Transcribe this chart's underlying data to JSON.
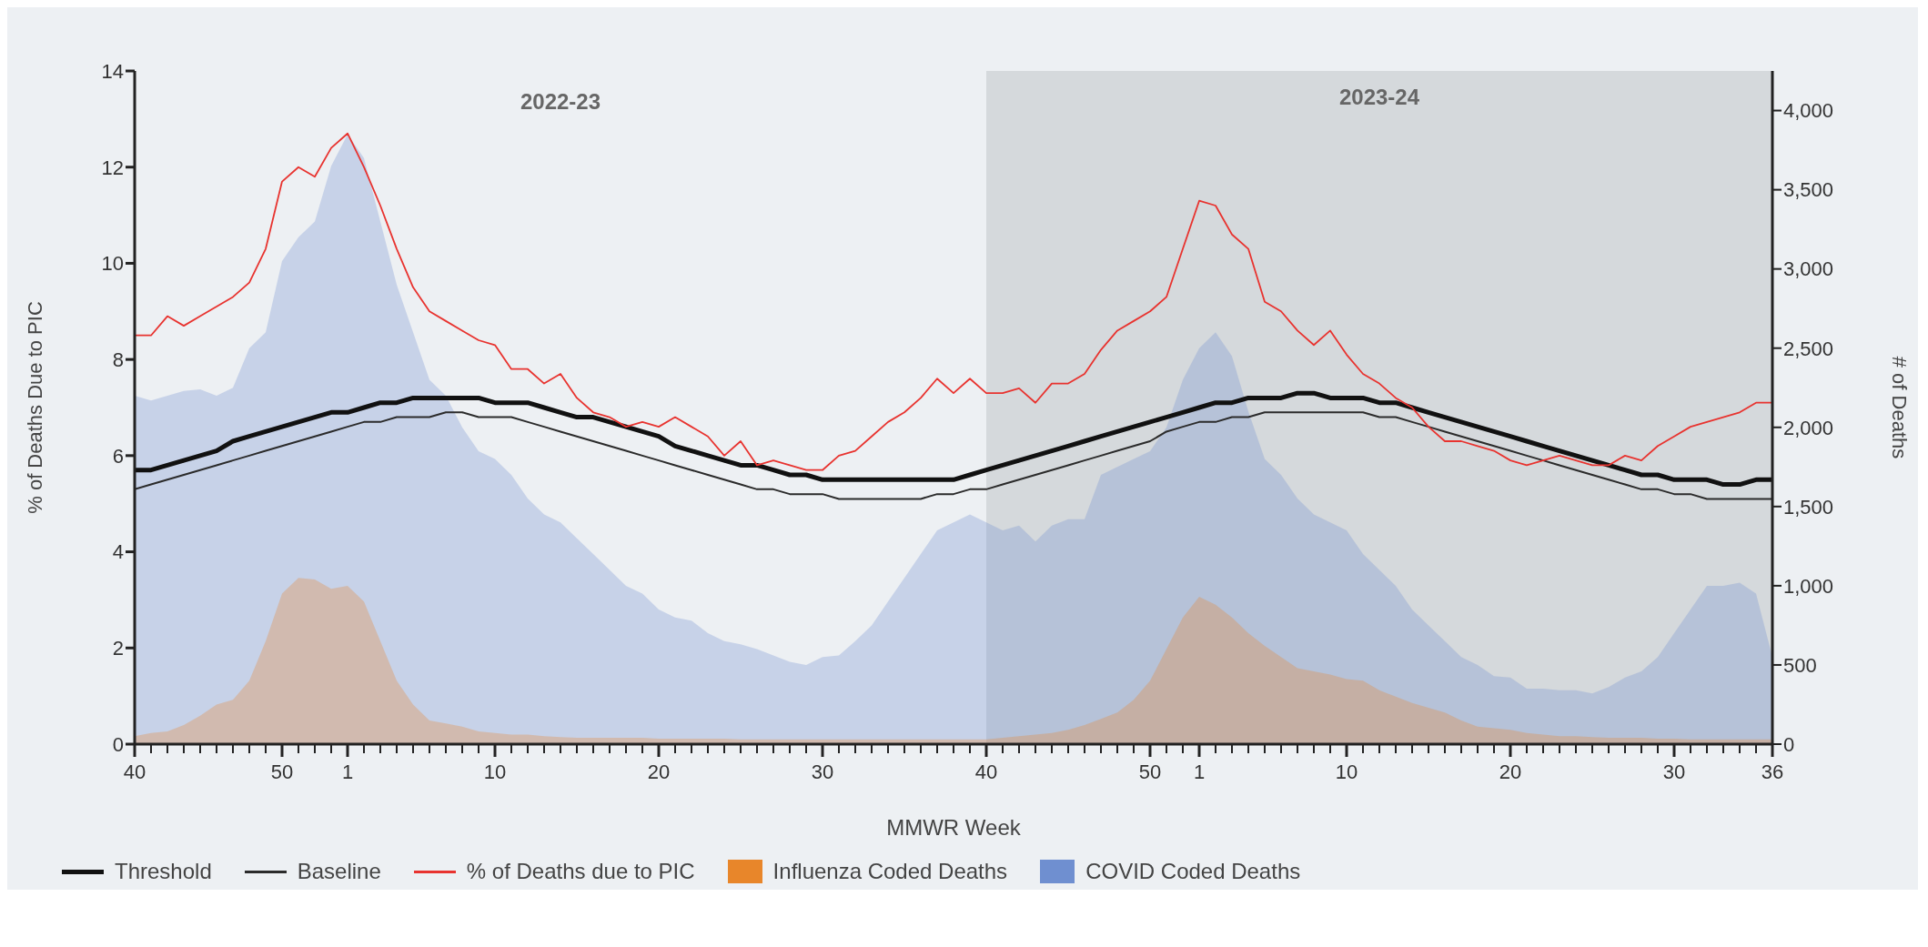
{
  "chart_data": {
    "type": "line",
    "xlabel": "MMWR Week",
    "ylabel": "% of Deaths Due to PIC",
    "y2label": "# of Deaths",
    "x": [
      "2022-10-08",
      "2022-10-15",
      "2022-10-22",
      "2022-10-29",
      "2022-11-05",
      "2022-11-12",
      "2022-11-19",
      "2022-11-26",
      "2022-12-03",
      "2022-12-10",
      "2022-12-17",
      "2022-12-24",
      "2022-12-31",
      "2023-01-07",
      "2023-01-14",
      "2023-01-21",
      "2023-01-28",
      "2023-02-04",
      "2023-02-11",
      "2023-02-18",
      "2023-02-25",
      "2023-03-04",
      "2023-03-11",
      "2023-03-18",
      "2023-03-25",
      "2023-04-01",
      "2023-04-08",
      "2023-04-15",
      "2023-04-22",
      "2023-04-29",
      "2023-05-06",
      "2023-05-13",
      "2023-05-20",
      "2023-05-27",
      "2023-06-03",
      "2023-06-10",
      "2023-06-17",
      "2023-06-24",
      "2023-07-01",
      "2023-07-08",
      "2023-07-15",
      "2023-07-22",
      "2023-07-29",
      "2023-08-05",
      "2023-08-12",
      "2023-08-19",
      "2023-08-26",
      "2023-09-02",
      "2023-09-09",
      "2023-09-16",
      "2023-09-23",
      "2023-09-30",
      "2023-10-07",
      "2023-10-14",
      "2023-10-21",
      "2023-10-28",
      "2023-11-04",
      "2023-11-11",
      "2023-11-18",
      "2023-11-25",
      "2023-12-02",
      "2023-12-09",
      "2023-12-16",
      "2023-12-23",
      "2023-12-30",
      "2024-01-06",
      "2024-01-13",
      "2024-01-20",
      "2024-01-27",
      "2024-02-03",
      "2024-02-10",
      "2024-02-17",
      "2024-02-24",
      "2024-03-02",
      "2024-03-09",
      "2024-03-16",
      "2024-03-23",
      "2024-03-30",
      "2024-04-06",
      "2024-04-13",
      "2024-04-20",
      "2024-04-27",
      "2024-05-04",
      "2024-05-11",
      "2024-05-18",
      "2024-05-25",
      "2024-06-01",
      "2024-06-08",
      "2024-06-15",
      "2024-06-22",
      "2024-06-29",
      "2024-07-06",
      "2024-07-13",
      "2024-07-20",
      "2024-07-27",
      "2024-08-03",
      "2024-08-10",
      "2024-08-17",
      "2024-08-24",
      "2024-08-31",
      "2024-09-07"
    ],
    "xlim": [
      "2022-10-08",
      "2024-09-07"
    ],
    "xticks": [
      {
        "value": "2022-10-08",
        "label": "40"
      },
      {
        "value": "2022-10-15",
        "label": null
      },
      {
        "value": "2022-10-22",
        "label": null
      },
      {
        "value": "2022-10-29",
        "label": null
      },
      {
        "value": "2022-11-05",
        "label": null
      },
      {
        "value": "2022-11-12",
        "label": null
      },
      {
        "value": "2022-11-19",
        "label": null
      },
      {
        "value": "2022-11-26",
        "label": null
      },
      {
        "value": "2022-12-03",
        "label": null
      },
      {
        "value": "2022-12-10",
        "label": "50"
      },
      {
        "value": "2022-12-17",
        "label": null
      },
      {
        "value": "2022-12-24",
        "label": null
      },
      {
        "value": "2022-12-31",
        "label": null
      },
      {
        "value": "2023-01-07",
        "label": "1"
      },
      {
        "value": "2023-01-14",
        "label": null
      },
      {
        "value": "2023-01-21",
        "label": null
      },
      {
        "value": "2023-01-28",
        "label": null
      },
      {
        "value": "2023-02-04",
        "label": null
      },
      {
        "value": "2023-02-11",
        "label": null
      },
      {
        "value": "2023-02-18",
        "label": null
      },
      {
        "value": "2023-02-25",
        "label": null
      },
      {
        "value": "2023-03-04",
        "label": null
      },
      {
        "value": "2023-03-11",
        "label": "10"
      },
      {
        "value": "2023-03-18",
        "label": null
      },
      {
        "value": "2023-03-25",
        "label": null
      },
      {
        "value": "2023-04-01",
        "label": null
      },
      {
        "value": "2023-04-08",
        "label": null
      },
      {
        "value": "2023-04-15",
        "label": null
      },
      {
        "value": "2023-04-22",
        "label": null
      },
      {
        "value": "2023-04-29",
        "label": null
      },
      {
        "value": "2023-05-06",
        "label": null
      },
      {
        "value": "2023-05-13",
        "label": null
      },
      {
        "value": "2023-05-20",
        "label": "20"
      },
      {
        "value": "2023-05-27",
        "label": null
      },
      {
        "value": "2023-06-03",
        "label": null
      },
      {
        "value": "2023-06-10",
        "label": null
      },
      {
        "value": "2023-06-17",
        "label": null
      },
      {
        "value": "2023-06-24",
        "label": null
      },
      {
        "value": "2023-07-01",
        "label": null
      },
      {
        "value": "2023-07-08",
        "label": null
      },
      {
        "value": "2023-07-15",
        "label": null
      },
      {
        "value": "2023-07-22",
        "label": null
      },
      {
        "value": "2023-07-29",
        "label": "30"
      },
      {
        "value": "2023-08-05",
        "label": null
      },
      {
        "value": "2023-08-12",
        "label": null
      },
      {
        "value": "2023-08-19",
        "label": null
      },
      {
        "value": "2023-08-26",
        "label": null
      },
      {
        "value": "2023-09-02",
        "label": null
      },
      {
        "value": "2023-09-09",
        "label": null
      },
      {
        "value": "2023-09-16",
        "label": null
      },
      {
        "value": "2023-09-23",
        "label": null
      },
      {
        "value": "2023-09-30",
        "label": null
      },
      {
        "value": "2023-10-07",
        "label": "40"
      },
      {
        "value": "2023-10-14",
        "label": null
      },
      {
        "value": "2023-10-21",
        "label": null
      },
      {
        "value": "2023-10-28",
        "label": null
      },
      {
        "value": "2023-11-04",
        "label": null
      },
      {
        "value": "2023-11-11",
        "label": null
      },
      {
        "value": "2023-11-18",
        "label": null
      },
      {
        "value": "2023-11-25",
        "label": null
      },
      {
        "value": "2023-12-02",
        "label": null
      },
      {
        "value": "2023-12-09",
        "label": null
      },
      {
        "value": "2023-12-16",
        "label": "50"
      },
      {
        "value": "2023-12-23",
        "label": null
      },
      {
        "value": "2023-12-30",
        "label": null
      },
      {
        "value": "2024-01-06",
        "label": "1"
      },
      {
        "value": "2024-01-13",
        "label": null
      },
      {
        "value": "2024-01-20",
        "label": null
      },
      {
        "value": "2024-01-27",
        "label": null
      },
      {
        "value": "2024-02-03",
        "label": null
      },
      {
        "value": "2024-02-10",
        "label": null
      },
      {
        "value": "2024-02-17",
        "label": null
      },
      {
        "value": "2024-02-24",
        "label": null
      },
      {
        "value": "2024-03-02",
        "label": null
      },
      {
        "value": "2024-03-09",
        "label": "10"
      },
      {
        "value": "2024-03-16",
        "label": null
      },
      {
        "value": "2024-03-23",
        "label": null
      },
      {
        "value": "2024-03-30",
        "label": null
      },
      {
        "value": "2024-04-06",
        "label": null
      },
      {
        "value": "2024-04-13",
        "label": null
      },
      {
        "value": "2024-04-20",
        "label": null
      },
      {
        "value": "2024-04-27",
        "label": null
      },
      {
        "value": "2024-05-04",
        "label": null
      },
      {
        "value": "2024-05-11",
        "label": null
      },
      {
        "value": "2024-05-18",
        "label": "20"
      },
      {
        "value": "2024-05-25",
        "label": null
      },
      {
        "value": "2024-06-01",
        "label": null
      },
      {
        "value": "2024-06-08",
        "label": null
      },
      {
        "value": "2024-06-15",
        "label": null
      },
      {
        "value": "2024-06-22",
        "label": null
      },
      {
        "value": "2024-06-29",
        "label": null
      },
      {
        "value": "2024-07-06",
        "label": null
      },
      {
        "value": "2024-07-13",
        "label": null
      },
      {
        "value": "2024-07-20",
        "label": null
      },
      {
        "value": "2024-07-27",
        "label": "30"
      },
      {
        "value": "2024-08-03",
        "label": null
      },
      {
        "value": "2024-08-10",
        "label": null
      },
      {
        "value": "2024-08-17",
        "label": null
      },
      {
        "value": "2024-08-24",
        "label": null
      },
      {
        "value": "2024-08-31",
        "label": null
      },
      {
        "value": "2024-09-07",
        "label": "36"
      }
    ],
    "ylim": [
      0,
      14
    ],
    "yticks": [
      0,
      2,
      4,
      6,
      8,
      10,
      12,
      14
    ],
    "y2lim": [
      0,
      4250
    ],
    "y2ticks": [
      0,
      500,
      {
        "value": 1000,
        "label": "1,000"
      },
      {
        "value": 1500,
        "label": "1,500"
      },
      {
        "value": 2000,
        "label": "2,000"
      },
      {
        "value": 2500,
        "label": "2,500"
      },
      {
        "value": 3000,
        "label": "3,000"
      },
      {
        "value": 3500,
        "label": "3,500"
      },
      {
        "value": 4000,
        "label": "4,000"
      }
    ],
    "series": [
      {
        "name": "Threshold",
        "color": "#111111",
        "values": [
          5.7,
          5.7,
          5.8,
          5.9,
          6.0,
          6.1,
          6.3,
          6.4,
          6.5,
          6.6,
          6.7,
          6.8,
          6.9,
          6.9,
          7.0,
          7.1,
          7.1,
          7.2,
          7.2,
          7.2,
          7.2,
          7.2,
          7.1,
          7.1,
          7.1,
          7.0,
          6.9,
          6.8,
          6.8,
          6.7,
          6.6,
          6.5,
          6.4,
          6.2,
          6.1,
          6.0,
          5.9,
          5.8,
          5.8,
          5.7,
          5.6,
          5.6,
          5.5,
          5.5,
          5.5,
          5.5,
          5.5,
          5.5,
          5.5,
          5.5,
          5.5,
          5.6,
          5.7,
          5.8,
          5.9,
          6.0,
          6.1,
          6.2,
          6.3,
          6.4,
          6.5,
          6.6,
          6.7,
          6.8,
          6.9,
          7.0,
          7.1,
          7.1,
          7.2,
          7.2,
          7.2,
          7.3,
          7.3,
          7.2,
          7.2,
          7.2,
          7.1,
          7.1,
          7.0,
          6.9,
          6.8,
          6.7,
          6.6,
          6.5,
          6.4,
          6.3,
          6.2,
          6.1,
          6.0,
          5.9,
          5.8,
          5.7,
          5.6,
          5.6,
          5.5,
          5.5,
          5.5,
          5.4,
          5.4,
          5.5,
          5.5
        ]
      },
      {
        "name": "Baseline",
        "color": "#2b2b2b",
        "values": [
          5.3,
          5.4,
          5.5,
          5.6,
          5.7,
          5.8,
          5.9,
          6.0,
          6.1,
          6.2,
          6.3,
          6.4,
          6.5,
          6.6,
          6.7,
          6.7,
          6.8,
          6.8,
          6.8,
          6.9,
          6.9,
          6.8,
          6.8,
          6.8,
          6.7,
          6.6,
          6.5,
          6.4,
          6.3,
          6.2,
          6.1,
          6.0,
          5.9,
          5.8,
          5.7,
          5.6,
          5.5,
          5.4,
          5.3,
          5.3,
          5.2,
          5.2,
          5.2,
          5.1,
          5.1,
          5.1,
          5.1,
          5.1,
          5.1,
          5.2,
          5.2,
          5.3,
          5.3,
          5.4,
          5.5,
          5.6,
          5.7,
          5.8,
          5.9,
          6.0,
          6.1,
          6.2,
          6.3,
          6.5,
          6.6,
          6.7,
          6.7,
          6.8,
          6.8,
          6.9,
          6.9,
          6.9,
          6.9,
          6.9,
          6.9,
          6.9,
          6.8,
          6.8,
          6.7,
          6.6,
          6.5,
          6.4,
          6.3,
          6.2,
          6.1,
          6.0,
          5.9,
          5.8,
          5.7,
          5.6,
          5.5,
          5.4,
          5.3,
          5.3,
          5.2,
          5.2,
          5.1,
          5.1,
          5.1,
          5.1,
          5.1
        ]
      },
      {
        "name": "% of Deaths due to PIC",
        "color": "#e8332f",
        "values": [
          8.5,
          8.5,
          8.9,
          8.7,
          8.9,
          9.1,
          9.3,
          9.6,
          10.3,
          11.7,
          12.0,
          11.8,
          12.4,
          12.7,
          12.0,
          11.2,
          10.3,
          9.5,
          9.0,
          8.8,
          8.6,
          8.4,
          8.3,
          7.8,
          7.8,
          7.5,
          7.7,
          7.2,
          6.9,
          6.8,
          6.6,
          6.7,
          6.6,
          6.8,
          6.6,
          6.4,
          6.0,
          6.3,
          5.8,
          5.9,
          5.8,
          5.7,
          5.7,
          6.0,
          6.1,
          6.4,
          6.7,
          6.9,
          7.2,
          7.6,
          7.3,
          7.6,
          7.3,
          7.3,
          7.4,
          7.1,
          7.5,
          7.5,
          7.7,
          8.2,
          8.6,
          8.8,
          9.0,
          9.3,
          10.3,
          11.3,
          11.2,
          10.6,
          10.3,
          9.2,
          9.0,
          8.6,
          8.3,
          8.6,
          8.1,
          7.7,
          7.5,
          7.2,
          7.0,
          6.6,
          6.3,
          6.3,
          6.2,
          6.1,
          5.9,
          5.8,
          5.9,
          6.0,
          5.9,
          5.8,
          5.8,
          6.0,
          5.9,
          6.2,
          6.4,
          6.6,
          6.7,
          6.8,
          6.9,
          7.1,
          7.1
        ]
      },
      {
        "name": "Influenza Coded Deaths",
        "type": "area",
        "axis": "y2",
        "color": "#e8862a",
        "values": [
          50,
          70,
          80,
          120,
          180,
          250,
          280,
          400,
          650,
          950,
          1050,
          1040,
          980,
          1000,
          900,
          650,
          400,
          250,
          150,
          130,
          110,
          80,
          70,
          60,
          60,
          50,
          45,
          40,
          40,
          40,
          40,
          40,
          35,
          35,
          35,
          35,
          35,
          30,
          30,
          30,
          30,
          30,
          30,
          30,
          30,
          30,
          30,
          30,
          30,
          30,
          30,
          30,
          30,
          40,
          50,
          60,
          70,
          90,
          120,
          160,
          200,
          280,
          400,
          600,
          800,
          930,
          880,
          800,
          700,
          620,
          550,
          480,
          460,
          440,
          410,
          400,
          340,
          300,
          260,
          230,
          200,
          150,
          110,
          100,
          90,
          70,
          60,
          50,
          50,
          45,
          40,
          40,
          40,
          35,
          35,
          30,
          30,
          30,
          30,
          30,
          30
        ]
      },
      {
        "name": "COVID Coded Deaths",
        "type": "area",
        "axis": "y2",
        "color": "#6f8fd0",
        "values": [
          2200,
          2170,
          2200,
          2230,
          2240,
          2200,
          2250,
          2500,
          2600,
          3050,
          3200,
          3300,
          3650,
          3850,
          3700,
          3300,
          2900,
          2600,
          2300,
          2200,
          2000,
          1850,
          1800,
          1700,
          1550,
          1450,
          1400,
          1300,
          1200,
          1100,
          1000,
          950,
          850,
          800,
          780,
          700,
          650,
          630,
          600,
          560,
          520,
          500,
          550,
          560,
          650,
          750,
          900,
          1050,
          1200,
          1350,
          1400,
          1450,
          1400,
          1350,
          1380,
          1280,
          1380,
          1420,
          1420,
          1700,
          1750,
          1800,
          1850,
          2000,
          2300,
          2500,
          2600,
          2450,
          2100,
          1800,
          1700,
          1550,
          1450,
          1400,
          1350,
          1200,
          1100,
          1000,
          850,
          750,
          650,
          550,
          500,
          430,
          420,
          350,
          350,
          340,
          340,
          320,
          360,
          420,
          460,
          550,
          700,
          850,
          1000,
          1000,
          1020,
          950,
          550
        ]
      }
    ],
    "bands": [
      {
        "axis": "x",
        "from": "2023-10-07",
        "to": "2024-09-07",
        "label": "2023-24",
        "color": "#d5d9dc"
      }
    ],
    "annotations": [
      "2022-23"
    ],
    "legend": "bottom",
    "marker": "none",
    "line_style": "solid"
  }
}
